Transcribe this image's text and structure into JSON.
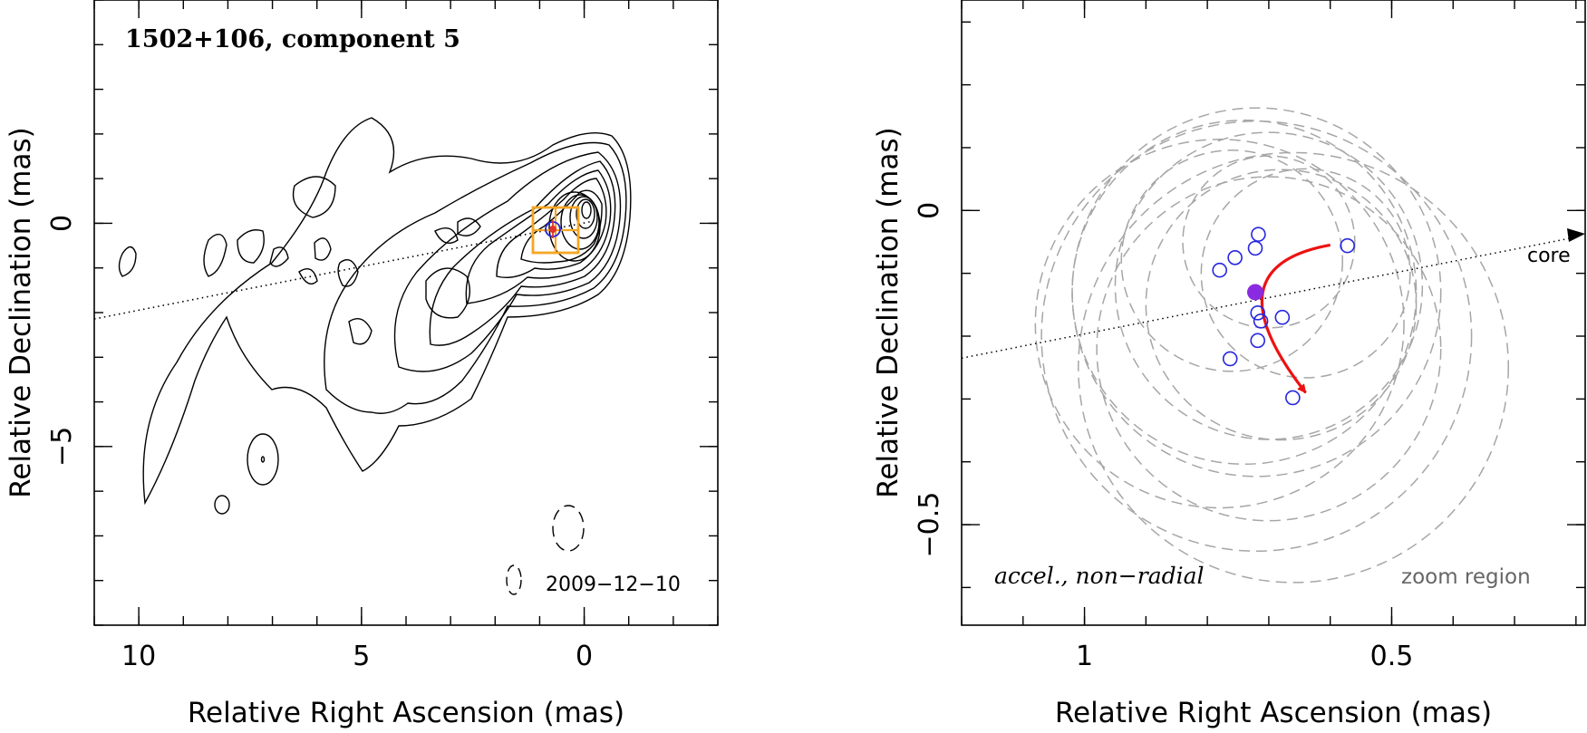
{
  "chart_data": [
    {
      "type": "contour",
      "title": "1502+106, component 5",
      "xlabel": "Relative Right Ascension (mas)",
      "ylabel": "Relative Declination (mas)",
      "xlim": [
        11,
        -3
      ],
      "ylim": [
        -9,
        5
      ],
      "xticks": [
        {
          "value": 10,
          "label": "10"
        },
        {
          "value": 5,
          "label": "5"
        },
        {
          "value": 0,
          "label": "0"
        }
      ],
      "yticks": [
        {
          "value": 0,
          "label": "0"
        },
        {
          "value": -5,
          "label": "−5"
        }
      ],
      "date_label": "2009−12−10",
      "jet_axis_pa_deg": 105,
      "component_position": [
        0.7,
        -0.15
      ],
      "zoom_box": {
        "x": [
          0.1,
          1.3
        ],
        "y": [
          -0.9,
          0.35
        ]
      },
      "beam": {
        "major": 1.5,
        "minor": 1.0
      }
    },
    {
      "type": "scatter",
      "xlabel": "Relative Right Ascension (mas)",
      "ylabel": "Relative Declination (mas)",
      "xlim": [
        1.2,
        0.185
      ],
      "ylim": [
        -0.66,
        0.335
      ],
      "xticks": [
        {
          "value": 1,
          "label": "1"
        },
        {
          "value": 0.5,
          "label": "0.5"
        }
      ],
      "yticks": [
        {
          "value": 0,
          "label": "0"
        },
        {
          "value": -0.5,
          "label": "−0.5"
        }
      ],
      "annotations": {
        "motion_label": "accel., non−radial",
        "zoom_label": "zoom region",
        "core_label": "core"
      },
      "epoch_positions": [
        {
          "x": 0.78,
          "y": -0.095
        },
        {
          "x": 0.755,
          "y": -0.075
        },
        {
          "x": 0.722,
          "y": -0.06
        },
        {
          "x": 0.717,
          "y": -0.038
        },
        {
          "x": 0.572,
          "y": -0.056
        },
        {
          "x": 0.718,
          "y": -0.163
        },
        {
          "x": 0.713,
          "y": -0.176
        },
        {
          "x": 0.678,
          "y": -0.17
        },
        {
          "x": 0.718,
          "y": -0.207
        },
        {
          "x": 0.763,
          "y": -0.236
        },
        {
          "x": 0.661,
          "y": -0.298
        }
      ],
      "mean_position": {
        "x": 0.722,
        "y": -0.13
      },
      "error_circles": [
        {
          "x": 0.72,
          "y": -0.13,
          "r": 0.3
        },
        {
          "x": 0.74,
          "y": -0.13,
          "r": 0.28
        },
        {
          "x": 0.7,
          "y": -0.12,
          "r": 0.25
        },
        {
          "x": 0.72,
          "y": -0.2,
          "r": 0.35
        },
        {
          "x": 0.66,
          "y": -0.25,
          "r": 0.35
        },
        {
          "x": 0.68,
          "y": -0.15,
          "r": 0.22
        },
        {
          "x": 0.76,
          "y": -0.08,
          "r": 0.18
        },
        {
          "x": 0.7,
          "y": -0.05,
          "r": 0.14
        },
        {
          "x": 0.64,
          "y": -0.1,
          "r": 0.17
        },
        {
          "x": 0.78,
          "y": -0.18,
          "r": 0.3
        },
        {
          "x": 0.7,
          "y": -0.22,
          "r": 0.28
        }
      ],
      "trajectory": [
        [
          0.6,
          -0.055
        ],
        [
          0.8,
          -0.09
        ],
        [
          0.64,
          -0.29
        ]
      ],
      "jet_axis": {
        "from": [
          1.2,
          -0.235
        ],
        "to": [
          0.185,
          -0.04
        ]
      }
    }
  ],
  "colors": {
    "axis": "#000000",
    "contour": "#000000",
    "zoom_box": "#f5a623",
    "component_marker": "#e0332b",
    "epoch_marker": "#2626e0",
    "mean_marker": "#8a2be2",
    "trajectory": "#ee1111",
    "error_circle": "#a6a6a6"
  }
}
